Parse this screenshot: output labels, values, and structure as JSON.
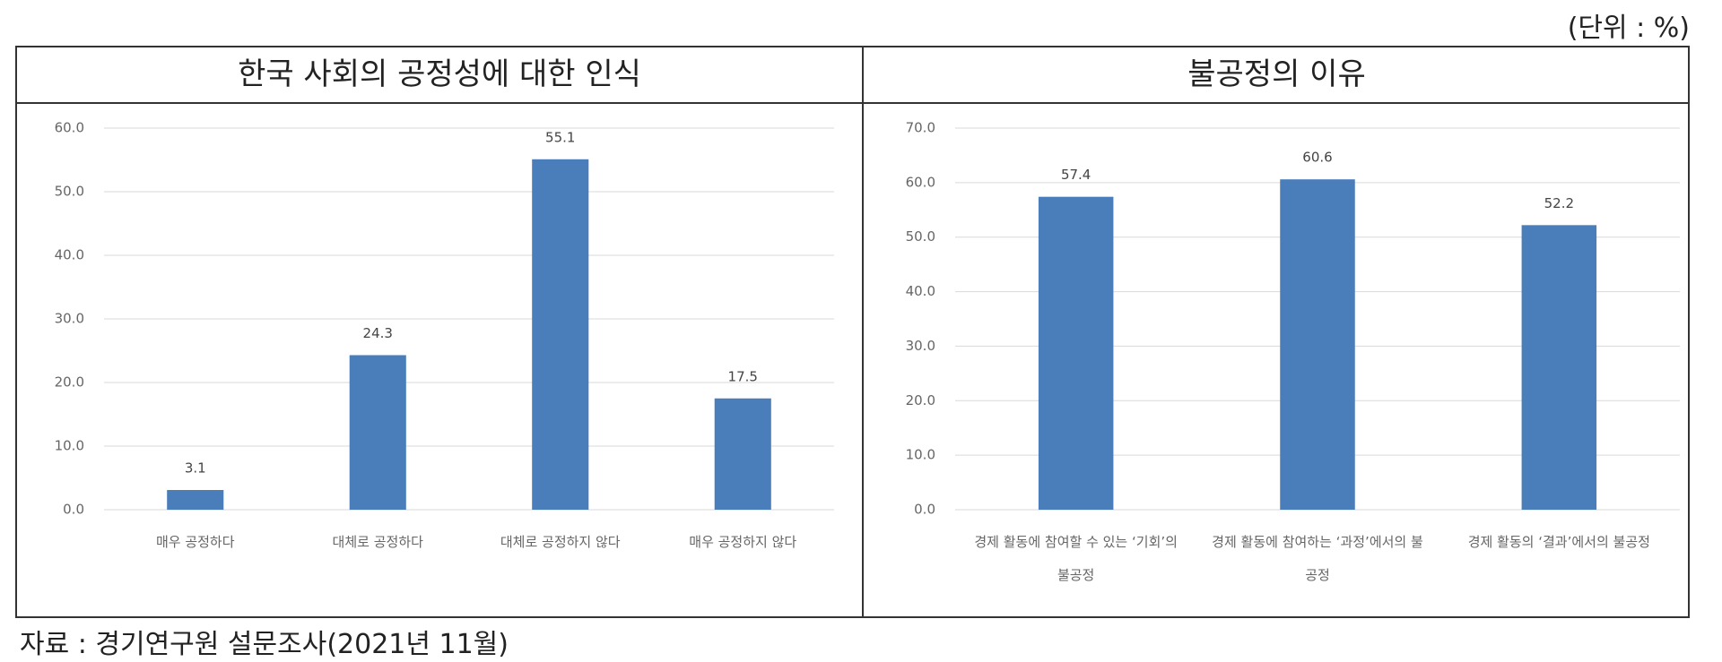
{
  "unit": "(단위 : %)",
  "source": "자료 : 경기연구원 설문조사(2021년 11월)",
  "chart_data": [
    {
      "type": "bar",
      "title": "한국 사회의 공정성에 대한 인식",
      "categories": [
        "매우 공정하다",
        "대체로 공정하다",
        "대체로 공정하지 않다",
        "매우 공정하지 않다"
      ],
      "values": [
        3.1,
        24.3,
        55.1,
        17.5
      ],
      "color": "#4a7ebb",
      "ylim": [
        0,
        60
      ],
      "yticks": [
        {
          "value": 0,
          "label": "0.0"
        },
        {
          "value": 10,
          "label": "10.0"
        },
        {
          "value": 20,
          "label": "20.0"
        },
        {
          "value": 30,
          "label": "30.0"
        },
        {
          "value": 40,
          "label": "40.0"
        },
        {
          "value": 50,
          "label": "50.0"
        },
        {
          "value": 60,
          "label": "60.0"
        }
      ],
      "grid": true
    },
    {
      "type": "bar",
      "title": "불공정의 이유",
      "categories": [
        "경제 활동에 참여할 수 있는 ‘기회’의 불공정",
        "경제 활동에 참여하는 ‘과정’에서의 불공정",
        "경제 활동의 ‘결과’에서의 불공정"
      ],
      "values": [
        57.4,
        60.6,
        52.2
      ],
      "color": "#4a7ebb",
      "ylim": [
        0,
        70
      ],
      "yticks": [
        {
          "value": 0,
          "label": "0.0"
        },
        {
          "value": 10,
          "label": "10.0"
        },
        {
          "value": 20,
          "label": "20.0"
        },
        {
          "value": 30,
          "label": "30.0"
        },
        {
          "value": 40,
          "label": "40.0"
        },
        {
          "value": 50,
          "label": "50.0"
        },
        {
          "value": 60,
          "label": "60.0"
        },
        {
          "value": 70,
          "label": "70.0"
        }
      ],
      "grid": true
    }
  ]
}
